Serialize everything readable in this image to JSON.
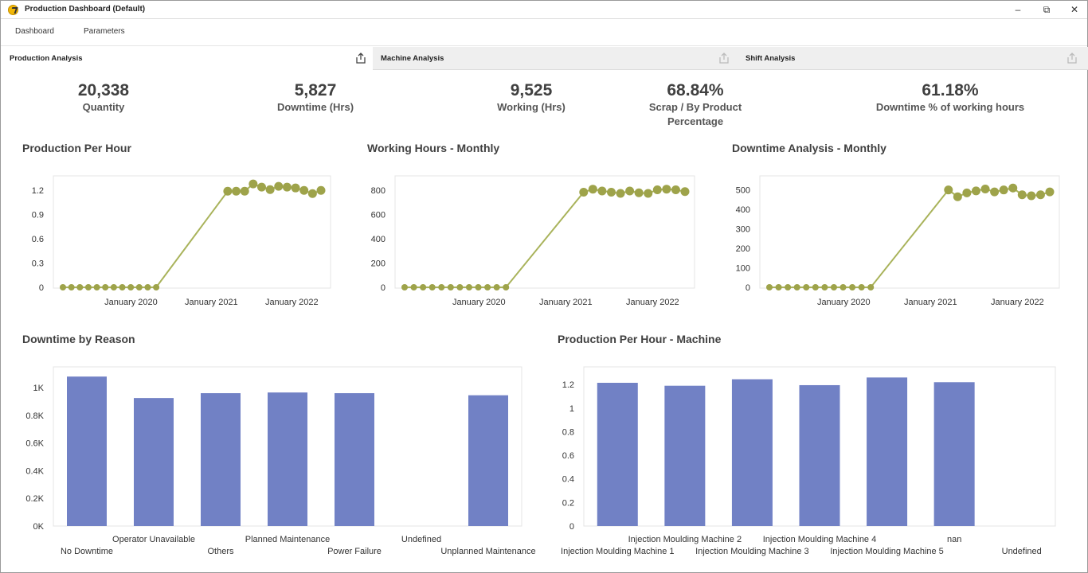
{
  "window": {
    "title": "Production Dashboard (Default)",
    "icons": {
      "minimize": "–",
      "restore": "⧉",
      "close": "✕"
    }
  },
  "menu": {
    "dashboard": "Dashboard",
    "parameters": "Parameters"
  },
  "tabs": [
    {
      "label": "Production Analysis",
      "icon": "export-icon"
    },
    {
      "label": "Machine Analysis",
      "icon": "export-icon"
    },
    {
      "label": "Shift Analysis",
      "icon": "export-icon"
    }
  ],
  "kpis": [
    {
      "value": "20,338",
      "label": "Quantity"
    },
    {
      "value": "5,827",
      "label": "Downtime (Hrs)"
    },
    {
      "value": "9,525",
      "label": "Working (Hrs)"
    },
    {
      "value": "68.84%",
      "label": "Scrap / By Product Percentage"
    },
    {
      "value": "61.18%",
      "label": "Downtime % of working hours"
    }
  ],
  "colors": {
    "line": "#a9b35b",
    "marker": "#9ea34a",
    "bar": "#7181c5",
    "grid": "#e8e8e8",
    "border": "#e4e4e4"
  },
  "chart_data": [
    {
      "id": "production-per-hour",
      "type": "line",
      "title": "Production Per Hour",
      "x_tick_labels": [
        "January 2020",
        "January 2021",
        "January 2022"
      ],
      "y_tick_labels": [
        "0",
        "0.3",
        "0.6",
        "0.9",
        "1.2"
      ],
      "ylim": [
        0,
        1.35
      ],
      "y_ticks": [
        0,
        0.3,
        0.6,
        0.9,
        1.2
      ],
      "values": [
        0,
        0,
        0,
        0,
        0,
        0,
        0,
        0,
        0,
        0,
        0,
        0,
        1.19,
        1.19,
        1.19,
        1.28,
        1.24,
        1.21,
        1.25,
        1.24,
        1.23,
        1.2,
        1.16,
        1.2
      ]
    },
    {
      "id": "working-hours-monthly",
      "type": "line",
      "title": "Working Hours - Monthly",
      "x_tick_labels": [
        "January 2020",
        "January 2021",
        "January 2022"
      ],
      "y_tick_labels": [
        "0",
        "200",
        "400",
        "600",
        "800"
      ],
      "ylim": [
        0,
        900
      ],
      "y_ticks": [
        0,
        200,
        400,
        600,
        800
      ],
      "values": [
        0,
        0,
        0,
        0,
        0,
        0,
        0,
        0,
        0,
        0,
        0,
        0,
        785,
        810,
        795,
        785,
        775,
        795,
        780,
        775,
        805,
        810,
        805,
        790
      ]
    },
    {
      "id": "downtime-analysis-monthly",
      "type": "line",
      "title": "Downtime Analysis - Monthly",
      "x_tick_labels": [
        "January 2020",
        "January 2021",
        "January 2022"
      ],
      "y_tick_labels": [
        "0",
        "100",
        "200",
        "300",
        "400",
        "500"
      ],
      "ylim": [
        0,
        560
      ],
      "y_ticks": [
        0,
        100,
        200,
        300,
        400,
        500
      ],
      "values": [
        0,
        0,
        0,
        0,
        0,
        0,
        0,
        0,
        0,
        0,
        0,
        0,
        500,
        465,
        485,
        495,
        505,
        490,
        500,
        510,
        475,
        470,
        475,
        490
      ]
    },
    {
      "id": "downtime-by-reason",
      "type": "bar",
      "title": "Downtime by Reason",
      "categories": [
        "No Downtime",
        "Operator Unavailable",
        "Others",
        "Planned Maintenance",
        "Power Failure",
        "Undefined",
        "Unplanned Maintenance"
      ],
      "values": [
        1080,
        925,
        960,
        965,
        960,
        0,
        945
      ],
      "y_tick_labels": [
        "0K",
        "0.2K",
        "0.4K",
        "0.6K",
        "0.8K",
        "1K"
      ],
      "y_ticks": [
        0,
        200,
        400,
        600,
        800,
        1000
      ],
      "ylim": [
        0,
        1150
      ]
    },
    {
      "id": "production-per-hour-machine",
      "type": "bar",
      "title": "Production Per Hour - Machine",
      "categories": [
        "Injection Moulding Machine 1",
        "Injection Moulding Machine 2",
        "Injection Moulding Machine 3",
        "Injection Moulding Machine 4",
        "Injection Moulding Machine 5",
        "nan",
        "Undefined"
      ],
      "values": [
        1.215,
        1.19,
        1.245,
        1.195,
        1.26,
        1.22,
        0
      ],
      "y_tick_labels": [
        "0",
        "0.2",
        "0.4",
        "0.6",
        "0.8",
        "1",
        "1.2"
      ],
      "y_ticks": [
        0,
        0.2,
        0.4,
        0.6,
        0.8,
        1.0,
        1.2
      ],
      "ylim": [
        0,
        1.35
      ]
    }
  ]
}
